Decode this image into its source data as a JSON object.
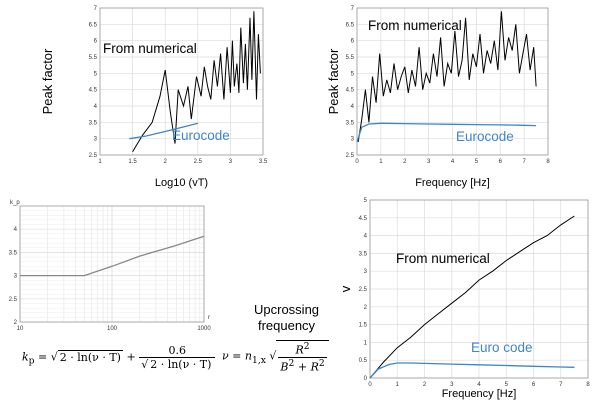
{
  "chart_data": [
    {
      "type": "line",
      "xlabel": "Log10 (vT)",
      "ylabel": "Peak factor",
      "xlim": [
        1.0,
        3.5
      ],
      "ylim": [
        2.5,
        7.0
      ],
      "xticks": [
        "1",
        "1.5",
        "2",
        "2.5",
        "3",
        "3.5"
      ],
      "yticks": [
        "2.5",
        "3",
        "3.5",
        "4",
        "4.5",
        "5",
        "5.5",
        "6",
        "6.5",
        "7"
      ],
      "annotations": [
        {
          "text": "From numerical"
        },
        {
          "text": "Eurocode"
        }
      ],
      "series": [
        {
          "name": "From numerical",
          "color": "#000000",
          "x": [
            1.5,
            1.65,
            1.8,
            1.92,
            2.0,
            2.08,
            2.15,
            2.2,
            2.28,
            2.35,
            2.4,
            2.48,
            2.55,
            2.6,
            2.65,
            2.7,
            2.75,
            2.8,
            2.85,
            2.9,
            2.95,
            3.0,
            3.03,
            3.06,
            3.1,
            3.13,
            3.16,
            3.2,
            3.23,
            3.26,
            3.3,
            3.33,
            3.36,
            3.4,
            3.43,
            3.46
          ],
          "y": [
            2.6,
            3.1,
            3.5,
            4.3,
            5.1,
            3.8,
            2.85,
            4.5,
            4.0,
            4.6,
            3.6,
            4.9,
            4.3,
            5.2,
            4.6,
            4.2,
            5.4,
            4.6,
            5.6,
            4.2,
            5.8,
            4.4,
            6.0,
            4.6,
            5.3,
            4.4,
            6.4,
            4.7,
            5.9,
            4.5,
            6.7,
            4.8,
            6.9,
            4.2,
            6.2,
            5.0
          ]
        },
        {
          "name": "Eurocode",
          "color": "#3f86c4",
          "x": [
            1.45,
            1.7,
            2.0,
            2.3,
            2.5
          ],
          "y": [
            3.0,
            3.08,
            3.22,
            3.37,
            3.47
          ]
        }
      ]
    },
    {
      "type": "line",
      "xlabel": "Frequency [Hz]",
      "ylabel": "Peak factor",
      "xlim": [
        0,
        8
      ],
      "ylim": [
        2.5,
        7.0
      ],
      "xticks": [
        "0",
        "1",
        "2",
        "3",
        "4",
        "5",
        "6",
        "7",
        "8"
      ],
      "yticks": [
        "2.5",
        "3",
        "3.5",
        "4",
        "4.5",
        "5",
        "5.5",
        "6",
        "6.5",
        "7"
      ],
      "annotations": [
        {
          "text": "From numerical"
        },
        {
          "text": "Eurocode"
        }
      ],
      "series": [
        {
          "name": "From numerical",
          "color": "#000000",
          "x": [
            0.05,
            0.2,
            0.35,
            0.5,
            0.65,
            0.8,
            0.95,
            1.1,
            1.25,
            1.4,
            1.55,
            1.7,
            1.85,
            2.0,
            2.15,
            2.3,
            2.45,
            2.6,
            2.75,
            2.9,
            3.05,
            3.2,
            3.35,
            3.5,
            3.65,
            3.8,
            3.95,
            4.1,
            4.25,
            4.4,
            4.55,
            4.7,
            4.85,
            5.0,
            5.15,
            5.3,
            5.45,
            5.6,
            5.75,
            5.9,
            6.05,
            6.2,
            6.35,
            6.5,
            6.65,
            6.8,
            6.95,
            7.1,
            7.25,
            7.4,
            7.5
          ],
          "y": [
            2.9,
            3.6,
            4.5,
            3.5,
            4.9,
            4.1,
            5.6,
            4.3,
            4.8,
            4.4,
            5.3,
            4.5,
            4.9,
            5.2,
            4.4,
            5.1,
            4.6,
            5.8,
            4.5,
            5.0,
            4.7,
            5.6,
            4.9,
            6.1,
            4.6,
            5.3,
            5.0,
            6.3,
            4.9,
            5.4,
            6.7,
            4.8,
            5.6,
            5.2,
            6.2,
            5.0,
            5.7,
            5.3,
            6.0,
            5.1,
            6.9,
            5.4,
            6.1,
            5.7,
            6.5,
            5.0,
            5.6,
            6.2,
            5.1,
            5.8,
            4.6
          ]
        },
        {
          "name": "Eurocode",
          "color": "#3f86c4",
          "x": [
            0.0,
            0.2,
            0.5,
            1.0,
            2.0,
            3.0,
            4.0,
            5.0,
            6.0,
            7.0,
            7.5
          ],
          "y": [
            2.9,
            3.35,
            3.45,
            3.47,
            3.46,
            3.45,
            3.44,
            3.43,
            3.42,
            3.41,
            3.4
          ]
        }
      ]
    },
    {
      "type": "line",
      "xscale": "log",
      "xlabel": "",
      "ylabel": "",
      "axis_x_label": "r",
      "axis_y_label": "k_p",
      "xlim": [
        10,
        1000
      ],
      "ylim": [
        2,
        4.5
      ],
      "xticks": [
        "10",
        "100",
        "1000"
      ],
      "yticks": [
        "2",
        "2.5",
        "3",
        "3.5",
        "4"
      ],
      "series": [
        {
          "name": "",
          "color": "#888888",
          "x": [
            10,
            50,
            100,
            200,
            500,
            1000
          ],
          "y": [
            3.0,
            3.0,
            3.2,
            3.42,
            3.65,
            3.85
          ]
        }
      ]
    },
    {
      "type": "line",
      "xlabel": "Frequency [Hz]",
      "ylabel": "v",
      "xlim": [
        0,
        8
      ],
      "ylim": [
        0,
        5
      ],
      "xticks": [
        "0",
        "1",
        "2",
        "3",
        "4",
        "5",
        "6",
        "7",
        "8"
      ],
      "yticks": [
        "0",
        "0.5",
        "1",
        "1.5",
        "2",
        "2.5",
        "3",
        "3.5",
        "4",
        "4.5",
        "5"
      ],
      "annotations": [
        {
          "text": "From numerical"
        },
        {
          "text": "Euro code"
        }
      ],
      "series": [
        {
          "name": "From numerical",
          "color": "#000000",
          "x": [
            0.0,
            0.5,
            1.0,
            1.5,
            2.0,
            2.5,
            3.0,
            3.5,
            4.0,
            4.5,
            5.0,
            5.5,
            6.0,
            6.5,
            7.0,
            7.5
          ],
          "y": [
            0.0,
            0.45,
            0.85,
            1.15,
            1.5,
            1.8,
            2.1,
            2.4,
            2.75,
            3.0,
            3.3,
            3.55,
            3.8,
            4.0,
            4.3,
            4.55
          ]
        },
        {
          "name": "Euro code",
          "color": "#3f86c4",
          "x": [
            0.0,
            0.3,
            0.7,
            1.0,
            1.5,
            2.0,
            3.0,
            4.0,
            5.0,
            6.0,
            7.0,
            7.5
          ],
          "y": [
            0.0,
            0.25,
            0.38,
            0.42,
            0.42,
            0.41,
            0.39,
            0.37,
            0.35,
            0.33,
            0.31,
            0.3
          ]
        }
      ]
    }
  ],
  "formulas": {
    "kp_lhs": "k",
    "kp_sub": "p",
    "kp_rad": "2 · ln(ν · T)",
    "kp_num": "0.6",
    "nu_lhs": "ν",
    "nu_n": "n",
    "nu_sub": "1,x",
    "nu_num": "R",
    "nu_den_b": "B",
    "nu_den_r": "R"
  },
  "upcrossing_label": [
    "Upcrossing",
    "frequency"
  ]
}
